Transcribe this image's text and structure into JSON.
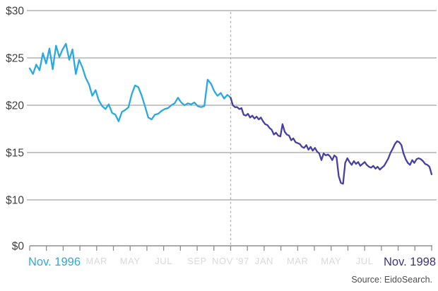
{
  "page": {
    "background": "#ffffff"
  },
  "chart_data": {
    "type": "line",
    "title": "",
    "description": "Stock price line chart from Nov. 1996 to Nov. 1998 with a dashed divider at Nov '97; earlier segment drawn in cyan, later segment in dark indigo",
    "y_axis": {
      "tick_labels": [
        "$30",
        "$25",
        "$20",
        "$15",
        "$10",
        "$0"
      ],
      "tick_values": [
        30,
        25,
        20,
        15,
        10,
        0
      ],
      "note": "axis compressed between $0 and $10",
      "grid": true
    },
    "x_axis": {
      "months_span": 24,
      "tick_every_month": 1,
      "labels": [
        {
          "text": "Nov. 1996",
          "month_index": 0,
          "role": "start"
        },
        {
          "text": "MAR",
          "month_index": 4,
          "role": "muted"
        },
        {
          "text": "MAY",
          "month_index": 6,
          "role": "muted"
        },
        {
          "text": "JUL",
          "month_index": 8,
          "role": "muted"
        },
        {
          "text": "SEP",
          "month_index": 10,
          "role": "muted"
        },
        {
          "text": "NOV '97",
          "month_index": 12,
          "role": "muted"
        },
        {
          "text": "JAN",
          "month_index": 14,
          "role": "muted"
        },
        {
          "text": "MAR",
          "month_index": 16,
          "role": "muted"
        },
        {
          "text": "MAY",
          "month_index": 18,
          "role": "muted"
        },
        {
          "text": "JUL",
          "month_index": 20,
          "role": "muted"
        },
        {
          "text": "Nov. 1998",
          "month_index": 24,
          "role": "end"
        }
      ]
    },
    "divider": {
      "month_index": 12,
      "style": "dashed",
      "color": "#b5b5b5"
    },
    "series": [
      {
        "name": "Nov. 1996 - Nov. 1997",
        "color": "#29a9e1",
        "values": [
          23.9,
          23.3,
          24.3,
          23.7,
          25.5,
          24.4,
          26.0,
          23.8,
          26.3,
          25.1,
          25.9,
          26.5,
          24.8,
          25.9,
          23.3,
          24.8,
          24.0,
          22.9,
          22.2,
          21.0,
          21.6,
          20.5,
          19.9,
          19.6,
          20.1,
          19.2,
          19.0,
          18.3,
          19.3,
          19.5,
          19.8,
          21.2,
          22.1,
          21.9,
          21.0,
          19.9,
          18.7,
          18.5,
          19.0,
          19.1,
          19.4,
          19.6,
          19.7,
          20.0,
          20.2,
          20.8,
          20.3,
          20.0,
          20.2,
          20.1,
          20.3,
          19.9,
          19.8,
          19.9,
          22.7,
          22.3,
          21.5,
          21.0,
          21.3,
          20.7,
          21.1,
          20.8
        ]
      },
      {
        "name": "Nov. 1997 - Nov. 1998",
        "color": "#4540a1",
        "values": [
          20.8,
          20.0,
          19.8,
          19.8,
          19.6,
          19.7,
          19.0,
          18.9,
          19.1,
          18.7,
          18.9,
          18.6,
          18.8,
          18.5,
          18.7,
          18.3,
          18.0,
          17.9,
          17.6,
          17.4,
          16.9,
          17.1,
          16.8,
          16.7,
          18.0,
          17.2,
          16.9,
          16.8,
          16.3,
          16.5,
          16.1,
          16.0,
          15.9,
          15.6,
          15.5,
          15.8,
          15.3,
          15.6,
          15.2,
          15.5,
          15.1,
          14.9,
          14.2,
          14.9,
          14.7,
          14.8,
          14.6,
          14.2,
          14.7,
          14.5,
          12.5,
          11.8,
          11.7,
          13.9,
          14.4,
          14.0,
          13.7,
          14.1,
          13.8,
          14.0,
          13.6,
          13.8,
          14.0,
          13.7,
          13.5,
          13.4,
          13.6,
          13.3,
          13.5,
          13.2,
          13.4,
          13.6,
          14.0,
          14.4,
          15.0,
          15.4,
          15.9,
          16.2,
          16.1,
          15.8,
          14.9,
          14.3,
          13.9,
          13.7,
          14.2,
          13.9,
          14.3,
          14.4,
          14.3,
          14.1,
          13.8,
          13.7,
          13.5,
          12.7
        ]
      }
    ],
    "source": "Source: EidoSearch.",
    "colors": {
      "grid": "#8e8e8e",
      "axis": "#8e8e8e",
      "tick": "#8e8e8e",
      "y_label": "#3f3f3f",
      "muted_label": "#d9d9d9",
      "start_label": "#29a9e1",
      "end_label": "#3a3483",
      "source": "#4d4d4d",
      "background": "#ffffff"
    }
  }
}
